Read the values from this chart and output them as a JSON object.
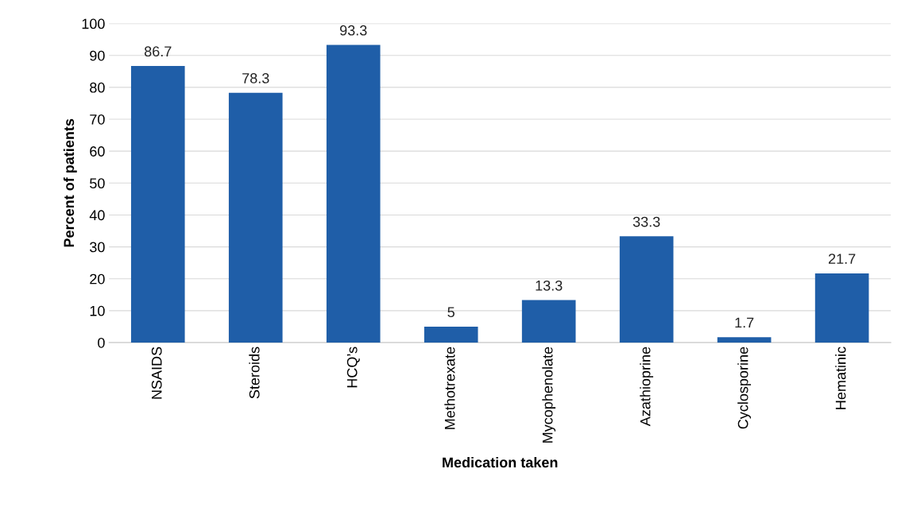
{
  "chart_data": {
    "type": "bar",
    "xlabel": "Medication taken",
    "ylabel": "Percent of patients",
    "categories": [
      "NSAIDS",
      "Steroids",
      "HCQ’s",
      "Methotrexate",
      "Mycophenolate",
      "Azathioprine",
      "Cyclosporine",
      "Hematinic"
    ],
    "values": [
      86.7,
      78.3,
      93.3,
      5,
      13.3,
      33.3,
      1.7,
      21.7
    ],
    "color": "#1f5ea8",
    "ylim": [
      0,
      100
    ],
    "yticks": [
      0,
      10,
      20,
      30,
      40,
      50,
      60,
      70,
      80,
      90,
      100
    ],
    "grid": "y",
    "data_labels": true
  }
}
